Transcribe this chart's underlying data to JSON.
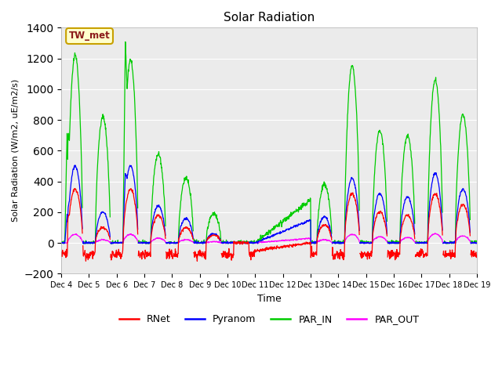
{
  "title": "Solar Radiation",
  "ylabel": "Solar Radiation (W/m2, uE/m2/s)",
  "xlabel": "Time",
  "ylim": [
    -200,
    1400
  ],
  "yticks": [
    -200,
    0,
    200,
    400,
    600,
    800,
    1000,
    1200,
    1400
  ],
  "bg_color": "#ebebeb",
  "annotation_text": "TW_met",
  "annotation_color": "#8b1a1a",
  "annotation_bg": "#ffffcc",
  "annotation_edge": "#c8a000",
  "line_colors": {
    "RNet": "#ff0000",
    "Pyranom": "#0000ff",
    "PAR_IN": "#00cc00",
    "PAR_OUT": "#ff00ff"
  },
  "xtick_labels": [
    "Dec 4",
    "Dec 5",
    "Dec 6",
    "Dec 7",
    "Dec 8",
    "Dec 9",
    "Dec 10",
    "Dec 11",
    "Dec 12",
    "Dec 13",
    "Dec 14",
    "Dec 15",
    "Dec 16",
    "Dec 17",
    "Dec 18",
    "Dec 19"
  ],
  "xtick_positions": [
    0,
    24,
    48,
    72,
    96,
    120,
    144,
    168,
    192,
    216,
    240,
    264,
    288,
    312,
    336,
    360
  ],
  "figsize": [
    6.4,
    4.8
  ],
  "dpi": 100
}
